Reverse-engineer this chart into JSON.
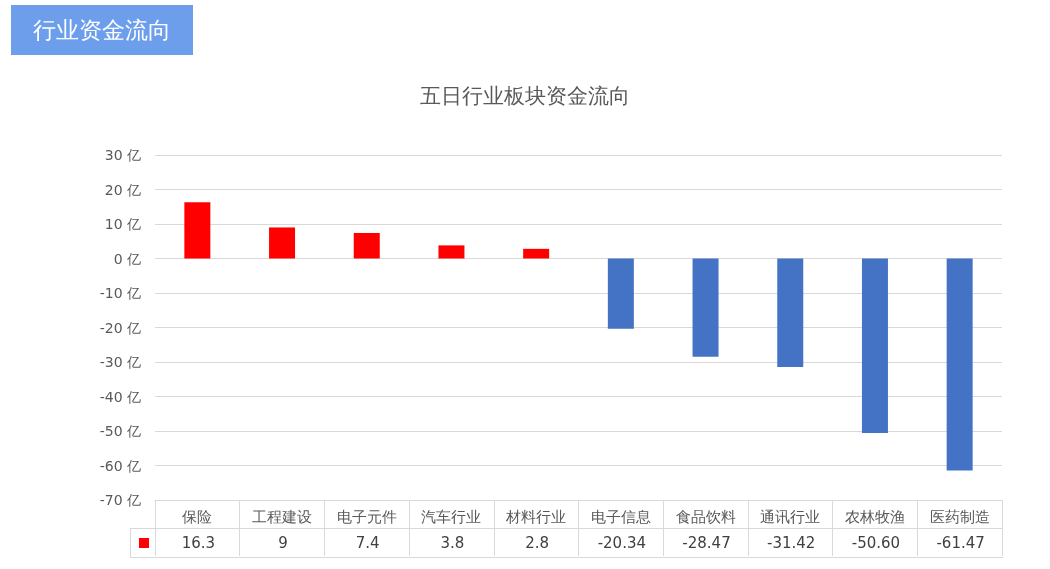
{
  "chart_data": {
    "type": "bar",
    "title": "五日行业板块资金流向",
    "annotations": [
      "行业资金流向"
    ],
    "categories": [
      "保险",
      "工程建设",
      "电子元件",
      "汽车行业",
      "材料行业",
      "电子信息",
      "食品饮料",
      "通讯行业",
      "农林牧渔",
      "医药制造"
    ],
    "values": [
      16.3,
      9,
      7.4,
      3.8,
      2.8,
      -20.34,
      -28.47,
      -31.42,
      -50.6,
      -61.47
    ],
    "colors": [
      "#ff0000",
      "#ff0000",
      "#ff0000",
      "#ff0000",
      "#ff0000",
      "#4472c4",
      "#4472c4",
      "#4472c4",
      "#4472c4",
      "#4472c4"
    ],
    "value_labels": [
      "16.3",
      "9",
      "7.4",
      "3.8",
      "2.8",
      "-20.34",
      "-28.47",
      "-31.42",
      "-50.60",
      "-61.47"
    ],
    "ylim": [
      -70,
      30
    ],
    "yticks": [
      {
        "value": -70,
        "label": "-70 亿"
      },
      {
        "value": -60,
        "label": "-60 亿"
      },
      {
        "value": -50,
        "label": "-50 亿"
      },
      {
        "value": -40,
        "label": "-40 亿"
      },
      {
        "value": -30,
        "label": "-30 亿"
      },
      {
        "value": -20,
        "label": "-20 亿"
      },
      {
        "value": -10,
        "label": "-10 亿"
      },
      {
        "value": 0,
        "label": "0 亿"
      },
      {
        "value": 10,
        "label": "10 亿"
      },
      {
        "value": 20,
        "label": "20 亿"
      },
      {
        "value": 30,
        "label": "30 亿"
      }
    ],
    "grid": true
  }
}
